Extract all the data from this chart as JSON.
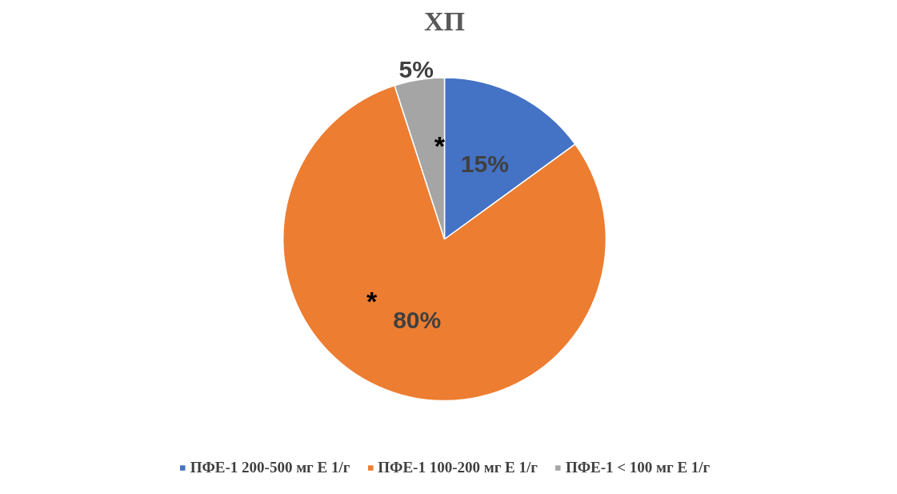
{
  "chart_data": {
    "type": "pie",
    "title": "ХП",
    "categories": [
      "ПФЕ-1 200-500 мг Е 1/г",
      "ПФЕ-1 100-200 мг Е 1/г",
      "ПФЕ-1 < 100 мг Е 1/г"
    ],
    "values": [
      15,
      80,
      5
    ],
    "colors": [
      "#4472c4",
      "#ed7d31",
      "#a5a5a5"
    ],
    "value_labels": [
      "15%",
      "80%",
      "5%"
    ],
    "annotations": [
      "*",
      "*"
    ],
    "legend": "bottom"
  }
}
